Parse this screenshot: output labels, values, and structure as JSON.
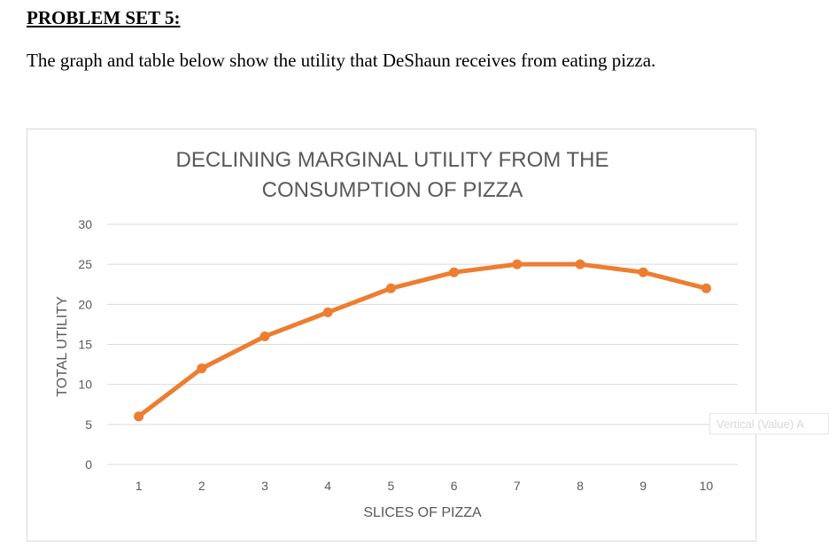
{
  "problem": {
    "heading": "PROBLEM SET 5:",
    "intro": "The graph and table below show the utility that DeShaun receives from eating pizza."
  },
  "chart_data": {
    "type": "line",
    "title_lines": [
      "DECLINING MARGINAL UTILITY FROM THE",
      "CONSUMPTION OF PIZZA"
    ],
    "xlabel": "SLICES OF PIZZA",
    "ylabel": "TOTAL UTILITY",
    "categories": [
      "1",
      "2",
      "3",
      "4",
      "5",
      "6",
      "7",
      "8",
      "9",
      "10"
    ],
    "x": [
      1,
      2,
      3,
      4,
      5,
      6,
      7,
      8,
      9,
      10
    ],
    "series": [
      {
        "name": "Total Utility",
        "values": [
          6,
          12,
          16,
          19,
          22,
          24,
          25,
          25,
          24,
          22
        ]
      }
    ],
    "ylim": [
      0,
      30
    ],
    "yticks": [
      0,
      5,
      10,
      15,
      20,
      25,
      30
    ],
    "grid": true,
    "line_color": "#ED7D31",
    "grid_color": "#d9d9d9"
  },
  "overlay": {
    "axis_tooltip": "Vertical (Value) A"
  }
}
